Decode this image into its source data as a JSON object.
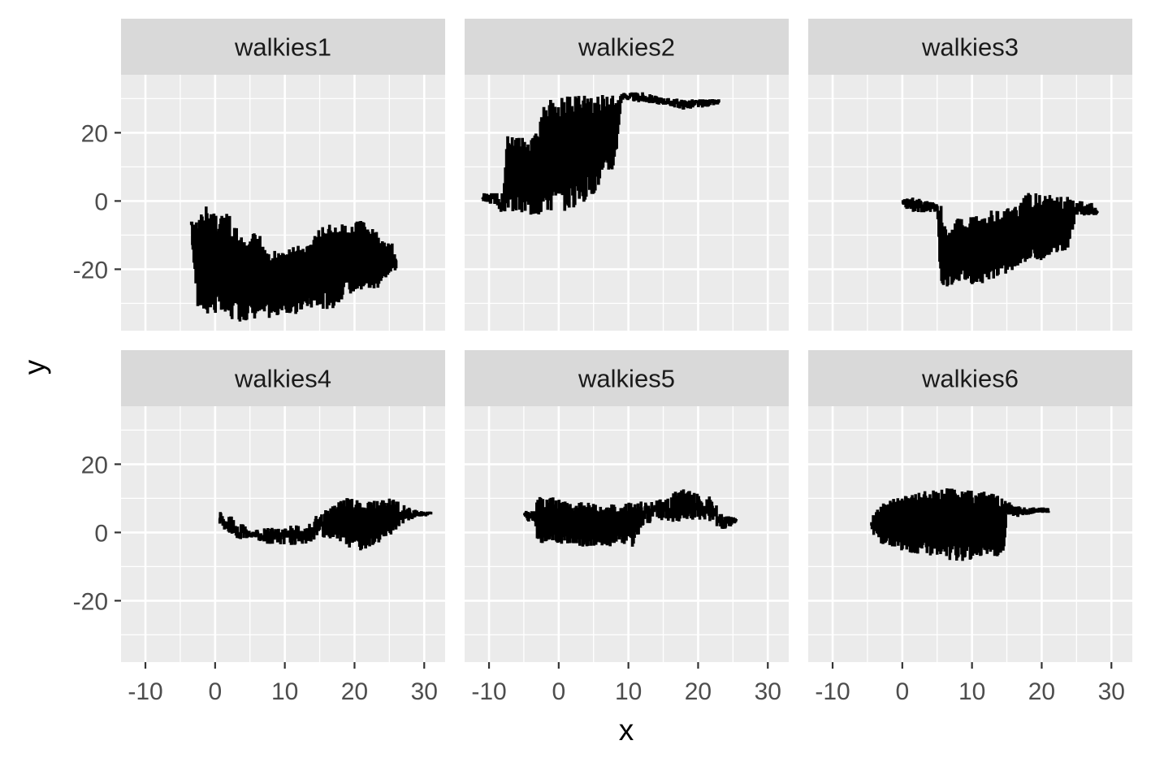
{
  "chart_data": {
    "type": "line",
    "subtype": "faceted step paths (ggplot2 facet_wrap)",
    "xlabel": "x",
    "ylabel": "y",
    "xlim": [
      -13.5,
      33
    ],
    "ylim": [
      -38,
      37
    ],
    "x_ticks": [
      -10,
      0,
      10,
      20,
      30
    ],
    "x_tick_labels": [
      "-10",
      "0",
      "10",
      "20",
      "30"
    ],
    "y_ticks": [
      -20,
      0,
      20
    ],
    "y_tick_labels": [
      "-20",
      "0",
      "20"
    ],
    "x_minor_ticks": [
      -5,
      5,
      15,
      25
    ],
    "y_minor_ticks": [
      -30,
      -10,
      10,
      30
    ],
    "colors": {
      "panel_background": "#EBEBEB",
      "strip_background": "#D9D9D9",
      "grid": "#FFFFFF",
      "line": "#000000",
      "tick_text": "#4D4D4D",
      "axis_title": "#000000"
    },
    "facets": [
      {
        "name": "walkies1",
        "envelope": [
          [
            -3.5,
            -8,
            -6
          ],
          [
            -2.5,
            -32,
            -6
          ],
          [
            -1,
            -33,
            0
          ],
          [
            0,
            -33,
            -3
          ],
          [
            2,
            -35,
            -4
          ],
          [
            4,
            -35,
            -12
          ],
          [
            6,
            -34,
            -9
          ],
          [
            8,
            -34,
            -15
          ],
          [
            10,
            -33,
            -15
          ],
          [
            12,
            -33,
            -13
          ],
          [
            13,
            -31,
            -14
          ],
          [
            15,
            -32,
            -8
          ],
          [
            17,
            -31,
            -7
          ],
          [
            19,
            -27,
            -7
          ],
          [
            21,
            -26,
            -6
          ],
          [
            23,
            -26,
            -9
          ],
          [
            24.5,
            -22,
            -12
          ],
          [
            26,
            -20,
            -13
          ]
        ]
      },
      {
        "name": "walkies2",
        "envelope": [
          [
            -11,
            0,
            2
          ],
          [
            -9,
            -1,
            2
          ],
          [
            -8,
            -4,
            2
          ],
          [
            -7.5,
            -3,
            19
          ],
          [
            -5,
            -4,
            20
          ],
          [
            -3,
            -4,
            20
          ],
          [
            -2,
            -3,
            29
          ],
          [
            0,
            -3,
            30
          ],
          [
            2,
            -2,
            31
          ],
          [
            4,
            0,
            31
          ],
          [
            6,
            5,
            31
          ],
          [
            8,
            10,
            31
          ],
          [
            9,
            30,
            31.5
          ],
          [
            12,
            29,
            31.5
          ],
          [
            15,
            28.5,
            30
          ],
          [
            18,
            27,
            29.5
          ],
          [
            20,
            27.5,
            29.5
          ],
          [
            23,
            28.5,
            29.5
          ]
        ]
      },
      {
        "name": "walkies3",
        "envelope": [
          [
            0,
            -1.5,
            0
          ],
          [
            1.5,
            -3,
            1
          ],
          [
            3,
            -3,
            0
          ],
          [
            5,
            -3,
            -1
          ],
          [
            5.5,
            -25,
            -1
          ],
          [
            6.5,
            -25,
            -10
          ],
          [
            8,
            -23,
            -5
          ],
          [
            10,
            -24,
            -5
          ],
          [
            12,
            -24,
            -3
          ],
          [
            14,
            -22,
            -3
          ],
          [
            16,
            -20,
            -2
          ],
          [
            18,
            -17,
            2
          ],
          [
            20,
            -17,
            2
          ],
          [
            22,
            -16,
            1
          ],
          [
            23.5,
            -15,
            1
          ],
          [
            25,
            -4,
            0
          ],
          [
            28,
            -4,
            -1
          ]
        ]
      },
      {
        "name": "walkies4",
        "envelope": [
          [
            0.5,
            2,
            6
          ],
          [
            2,
            0,
            5
          ],
          [
            3.5,
            -2,
            3
          ],
          [
            5,
            -1,
            0
          ],
          [
            7,
            -3,
            1
          ],
          [
            9,
            -3,
            1
          ],
          [
            11,
            -4,
            2
          ],
          [
            13,
            -3,
            1
          ],
          [
            15,
            -1,
            6
          ],
          [
            17,
            -2,
            8
          ],
          [
            19,
            -4,
            10
          ],
          [
            21,
            -5,
            9
          ],
          [
            23,
            -3,
            9
          ],
          [
            25,
            -1,
            10
          ],
          [
            27,
            3,
            8
          ],
          [
            29,
            5,
            6
          ],
          [
            31,
            5,
            6
          ]
        ]
      },
      {
        "name": "walkies5",
        "envelope": [
          [
            -5,
            4,
            6
          ],
          [
            -3.5,
            3,
            6
          ],
          [
            -3,
            -3,
            10
          ],
          [
            -1,
            -3,
            10
          ],
          [
            1,
            -3,
            9
          ],
          [
            3,
            -4,
            9
          ],
          [
            5,
            -4,
            8
          ],
          [
            7,
            -4,
            8
          ],
          [
            9,
            -3,
            8
          ],
          [
            10.5,
            -4,
            9
          ],
          [
            12,
            2,
            9
          ],
          [
            14,
            4,
            9
          ],
          [
            16,
            3,
            11
          ],
          [
            18,
            4,
            13
          ],
          [
            20,
            4,
            11
          ],
          [
            22,
            3,
            10
          ],
          [
            23.5,
            1,
            5
          ],
          [
            25.5,
            3,
            4
          ]
        ]
      },
      {
        "name": "walkies6",
        "envelope": [
          [
            -4.5,
            0,
            4
          ],
          [
            -3,
            -3,
            8
          ],
          [
            -1,
            -4,
            10
          ],
          [
            1,
            -6,
            11
          ],
          [
            3,
            -6,
            12
          ],
          [
            5,
            -7,
            12
          ],
          [
            7,
            -8,
            13
          ],
          [
            9,
            -8,
            12
          ],
          [
            11,
            -7,
            12
          ],
          [
            13,
            -7,
            11
          ],
          [
            14.5,
            -6,
            10
          ],
          [
            15,
            4,
            9
          ],
          [
            17,
            5,
            7
          ],
          [
            19,
            6,
            7
          ],
          [
            21,
            6,
            7
          ]
        ]
      }
    ]
  }
}
